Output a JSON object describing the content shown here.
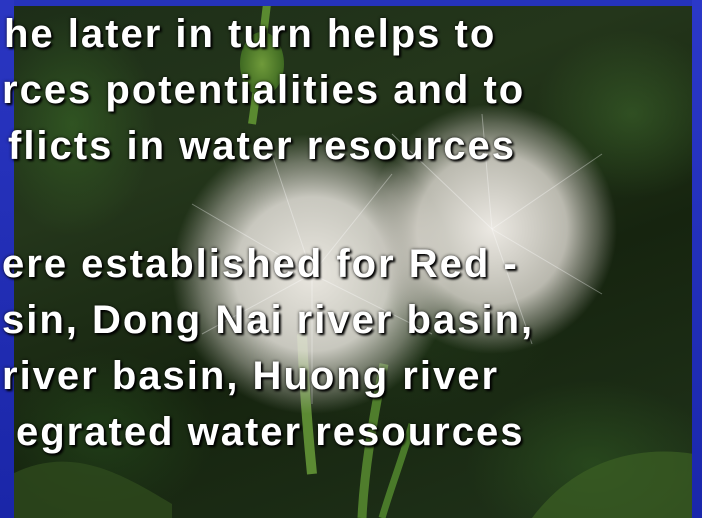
{
  "slide": {
    "lines": [
      "he later in turn helps to",
      "rces potentialities and to",
      "flicts in water resources",
      "ere established for Red -",
      "sin, Dong Nai river basin,",
      "river basin, Huong river",
      "egrated water resources"
    ]
  },
  "colors": {
    "frame_blue": "#1f2bb0",
    "text": "#ffffff"
  }
}
